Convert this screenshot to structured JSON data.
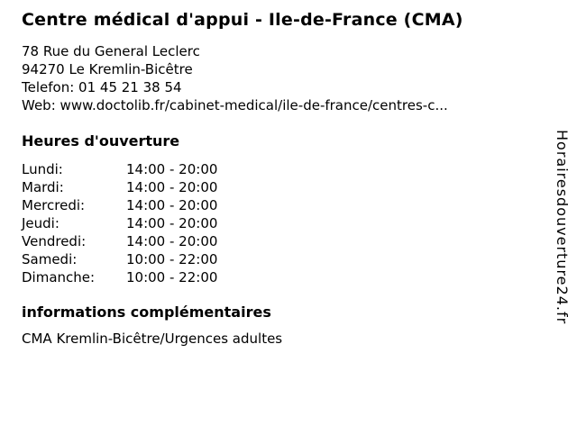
{
  "business": {
    "name": "Centre médical d'appui - Ile-de-France (CMA)",
    "address_street": "78 Rue du General Leclerc",
    "address_city": "94270 Le Kremlin-Bicêtre",
    "phone_label": "Telefon:",
    "phone_number": "01 45 21 38 54",
    "web_label": "Web:",
    "web_url": "www.doctolib.fr/cabinet-medical/ile-de-france/centres-c..."
  },
  "hours": {
    "heading": "Heures d'ouverture",
    "rows": [
      {
        "day": "Lundi:",
        "time": "14:00 - 20:00"
      },
      {
        "day": "Mardi:",
        "time": "14:00 - 20:00"
      },
      {
        "day": "Mercredi:",
        "time": "14:00 - 20:00"
      },
      {
        "day": "Jeudi:",
        "time": "14:00 - 20:00"
      },
      {
        "day": "Vendredi:",
        "time": "14:00 - 20:00"
      },
      {
        "day": "Samedi:",
        "time": "10:00 - 22:00"
      },
      {
        "day": "Dimanche:",
        "time": "10:00 - 22:00"
      }
    ]
  },
  "extra_info": {
    "heading": "informations complémentaires",
    "text": "CMA Kremlin-Bicêtre/Urgences adultes"
  },
  "watermark": {
    "text": "Horairesdouverture24.fr"
  },
  "colors": {
    "text": "#000000",
    "background": "#ffffff"
  }
}
